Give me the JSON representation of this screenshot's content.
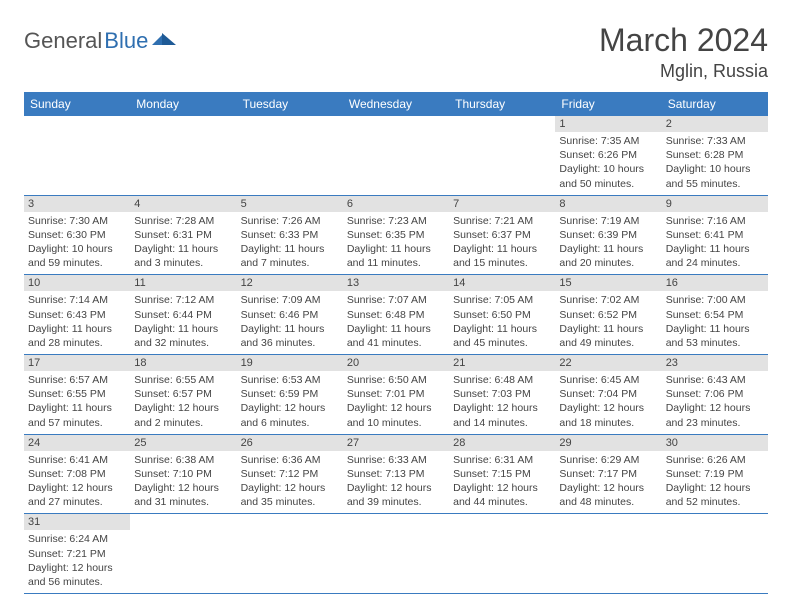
{
  "logo": {
    "text1": "General",
    "text2": "Blue"
  },
  "title": "March 2024",
  "location": "Mglin, Russia",
  "colors": {
    "header_bg": "#3a7bc0",
    "header_fg": "#ffffff",
    "daynum_bg": "#e2e2e2",
    "row_border": "#3a7bc0",
    "logo_blue": "#2f6fb0",
    "logo_grey": "#555555"
  },
  "day_headers": [
    "Sunday",
    "Monday",
    "Tuesday",
    "Wednesday",
    "Thursday",
    "Friday",
    "Saturday"
  ],
  "weeks": [
    [
      {
        "n": "",
        "sr": "",
        "ss": "",
        "dl": ""
      },
      {
        "n": "",
        "sr": "",
        "ss": "",
        "dl": ""
      },
      {
        "n": "",
        "sr": "",
        "ss": "",
        "dl": ""
      },
      {
        "n": "",
        "sr": "",
        "ss": "",
        "dl": ""
      },
      {
        "n": "",
        "sr": "",
        "ss": "",
        "dl": ""
      },
      {
        "n": "1",
        "sr": "Sunrise: 7:35 AM",
        "ss": "Sunset: 6:26 PM",
        "dl": "Daylight: 10 hours and 50 minutes."
      },
      {
        "n": "2",
        "sr": "Sunrise: 7:33 AM",
        "ss": "Sunset: 6:28 PM",
        "dl": "Daylight: 10 hours and 55 minutes."
      }
    ],
    [
      {
        "n": "3",
        "sr": "Sunrise: 7:30 AM",
        "ss": "Sunset: 6:30 PM",
        "dl": "Daylight: 10 hours and 59 minutes."
      },
      {
        "n": "4",
        "sr": "Sunrise: 7:28 AM",
        "ss": "Sunset: 6:31 PM",
        "dl": "Daylight: 11 hours and 3 minutes."
      },
      {
        "n": "5",
        "sr": "Sunrise: 7:26 AM",
        "ss": "Sunset: 6:33 PM",
        "dl": "Daylight: 11 hours and 7 minutes."
      },
      {
        "n": "6",
        "sr": "Sunrise: 7:23 AM",
        "ss": "Sunset: 6:35 PM",
        "dl": "Daylight: 11 hours and 11 minutes."
      },
      {
        "n": "7",
        "sr": "Sunrise: 7:21 AM",
        "ss": "Sunset: 6:37 PM",
        "dl": "Daylight: 11 hours and 15 minutes."
      },
      {
        "n": "8",
        "sr": "Sunrise: 7:19 AM",
        "ss": "Sunset: 6:39 PM",
        "dl": "Daylight: 11 hours and 20 minutes."
      },
      {
        "n": "9",
        "sr": "Sunrise: 7:16 AM",
        "ss": "Sunset: 6:41 PM",
        "dl": "Daylight: 11 hours and 24 minutes."
      }
    ],
    [
      {
        "n": "10",
        "sr": "Sunrise: 7:14 AM",
        "ss": "Sunset: 6:43 PM",
        "dl": "Daylight: 11 hours and 28 minutes."
      },
      {
        "n": "11",
        "sr": "Sunrise: 7:12 AM",
        "ss": "Sunset: 6:44 PM",
        "dl": "Daylight: 11 hours and 32 minutes."
      },
      {
        "n": "12",
        "sr": "Sunrise: 7:09 AM",
        "ss": "Sunset: 6:46 PM",
        "dl": "Daylight: 11 hours and 36 minutes."
      },
      {
        "n": "13",
        "sr": "Sunrise: 7:07 AM",
        "ss": "Sunset: 6:48 PM",
        "dl": "Daylight: 11 hours and 41 minutes."
      },
      {
        "n": "14",
        "sr": "Sunrise: 7:05 AM",
        "ss": "Sunset: 6:50 PM",
        "dl": "Daylight: 11 hours and 45 minutes."
      },
      {
        "n": "15",
        "sr": "Sunrise: 7:02 AM",
        "ss": "Sunset: 6:52 PM",
        "dl": "Daylight: 11 hours and 49 minutes."
      },
      {
        "n": "16",
        "sr": "Sunrise: 7:00 AM",
        "ss": "Sunset: 6:54 PM",
        "dl": "Daylight: 11 hours and 53 minutes."
      }
    ],
    [
      {
        "n": "17",
        "sr": "Sunrise: 6:57 AM",
        "ss": "Sunset: 6:55 PM",
        "dl": "Daylight: 11 hours and 57 minutes."
      },
      {
        "n": "18",
        "sr": "Sunrise: 6:55 AM",
        "ss": "Sunset: 6:57 PM",
        "dl": "Daylight: 12 hours and 2 minutes."
      },
      {
        "n": "19",
        "sr": "Sunrise: 6:53 AM",
        "ss": "Sunset: 6:59 PM",
        "dl": "Daylight: 12 hours and 6 minutes."
      },
      {
        "n": "20",
        "sr": "Sunrise: 6:50 AM",
        "ss": "Sunset: 7:01 PM",
        "dl": "Daylight: 12 hours and 10 minutes."
      },
      {
        "n": "21",
        "sr": "Sunrise: 6:48 AM",
        "ss": "Sunset: 7:03 PM",
        "dl": "Daylight: 12 hours and 14 minutes."
      },
      {
        "n": "22",
        "sr": "Sunrise: 6:45 AM",
        "ss": "Sunset: 7:04 PM",
        "dl": "Daylight: 12 hours and 18 minutes."
      },
      {
        "n": "23",
        "sr": "Sunrise: 6:43 AM",
        "ss": "Sunset: 7:06 PM",
        "dl": "Daylight: 12 hours and 23 minutes."
      }
    ],
    [
      {
        "n": "24",
        "sr": "Sunrise: 6:41 AM",
        "ss": "Sunset: 7:08 PM",
        "dl": "Daylight: 12 hours and 27 minutes."
      },
      {
        "n": "25",
        "sr": "Sunrise: 6:38 AM",
        "ss": "Sunset: 7:10 PM",
        "dl": "Daylight: 12 hours and 31 minutes."
      },
      {
        "n": "26",
        "sr": "Sunrise: 6:36 AM",
        "ss": "Sunset: 7:12 PM",
        "dl": "Daylight: 12 hours and 35 minutes."
      },
      {
        "n": "27",
        "sr": "Sunrise: 6:33 AM",
        "ss": "Sunset: 7:13 PM",
        "dl": "Daylight: 12 hours and 39 minutes."
      },
      {
        "n": "28",
        "sr": "Sunrise: 6:31 AM",
        "ss": "Sunset: 7:15 PM",
        "dl": "Daylight: 12 hours and 44 minutes."
      },
      {
        "n": "29",
        "sr": "Sunrise: 6:29 AM",
        "ss": "Sunset: 7:17 PM",
        "dl": "Daylight: 12 hours and 48 minutes."
      },
      {
        "n": "30",
        "sr": "Sunrise: 6:26 AM",
        "ss": "Sunset: 7:19 PM",
        "dl": "Daylight: 12 hours and 52 minutes."
      }
    ],
    [
      {
        "n": "31",
        "sr": "Sunrise: 6:24 AM",
        "ss": "Sunset: 7:21 PM",
        "dl": "Daylight: 12 hours and 56 minutes."
      },
      {
        "n": "",
        "sr": "",
        "ss": "",
        "dl": ""
      },
      {
        "n": "",
        "sr": "",
        "ss": "",
        "dl": ""
      },
      {
        "n": "",
        "sr": "",
        "ss": "",
        "dl": ""
      },
      {
        "n": "",
        "sr": "",
        "ss": "",
        "dl": ""
      },
      {
        "n": "",
        "sr": "",
        "ss": "",
        "dl": ""
      },
      {
        "n": "",
        "sr": "",
        "ss": "",
        "dl": ""
      }
    ]
  ]
}
